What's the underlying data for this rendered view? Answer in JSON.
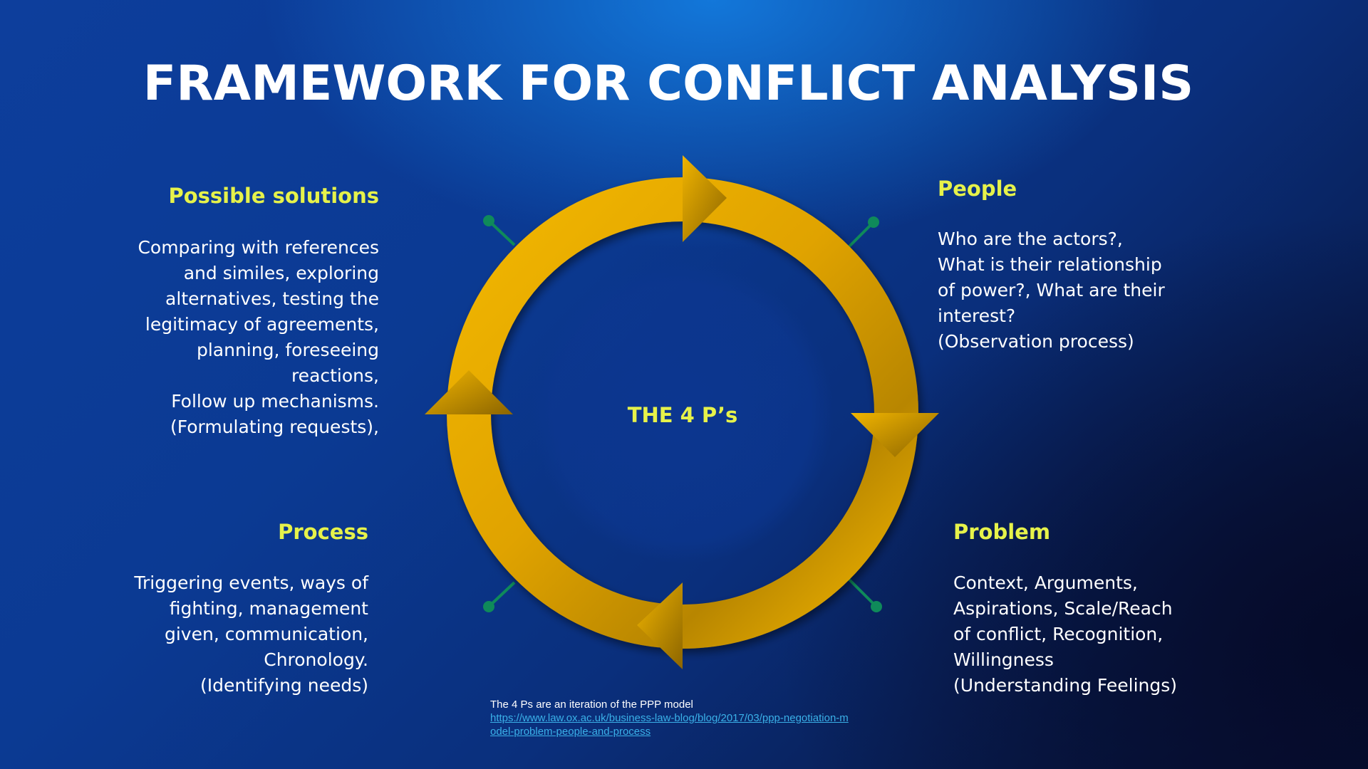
{
  "title": "FRAMEWORK FOR CONFLICT ANALYSIS",
  "center_label": "THE 4 P’s",
  "colors": {
    "heading": "#e6f24a",
    "ring": "#e6a800",
    "connector": "#0f8a5a",
    "link": "#3ab0e8"
  },
  "sections": {
    "solutions": {
      "heading": "Possible solutions",
      "lines": [
        "Comparing with references",
        "and similes, exploring",
        "alternatives, testing the",
        "legitimacy of agreements,",
        "planning, foreseeing",
        "reactions,",
        "Follow up mechanisms.",
        "(Formulating requests),"
      ]
    },
    "people": {
      "heading": "People",
      "lines": [
        "Who are the actors?,",
        "What is their relationship",
        "of power?, What are their",
        "interest?",
        "(Observation process)"
      ]
    },
    "process": {
      "heading": "Process",
      "lines": [
        "Triggering events, ways of",
        "fighting, management",
        "given, communication,",
        "Chronology.",
        "(Identifying needs)"
      ]
    },
    "problem": {
      "heading": "Problem",
      "lines": [
        "Context, Arguments,",
        "Aspirations, Scale/Reach",
        "of conflict, Recognition,",
        "Willingness",
        "(Understanding Feelings)"
      ]
    }
  },
  "footnote": {
    "text": "The 4 Ps are an iteration of the PPP model",
    "link_line1": "https://www.law.ox.ac.uk/business-law-blog/blog/2017/03/ppp-negotiation-m",
    "link_line2": "odel-problem-people-and-process"
  }
}
